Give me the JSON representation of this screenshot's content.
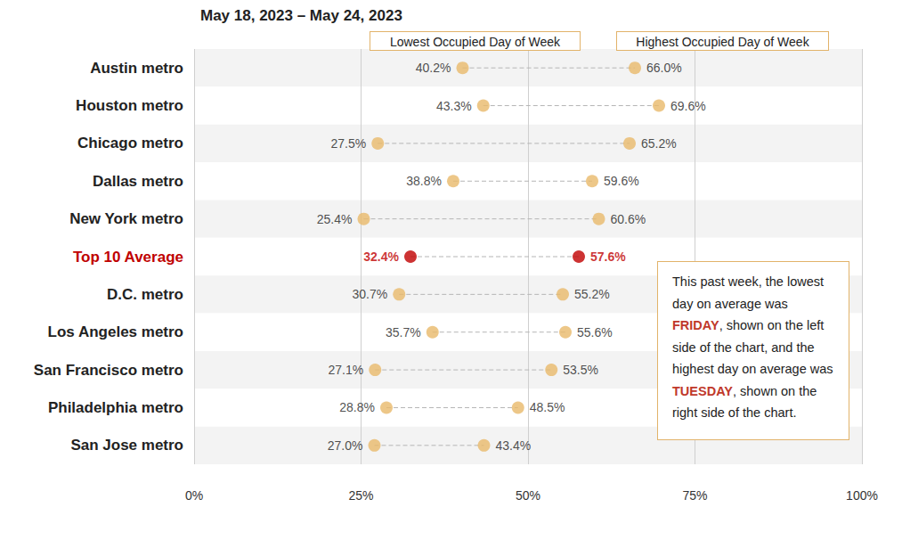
{
  "chart_data": {
    "type": "dumbbell",
    "title": "May 18, 2023 – May 24, 2023",
    "orientation": "horizontal",
    "categories": [
      "Austin metro",
      "Houston metro",
      "Chicago metro",
      "Dallas metro",
      "New York metro",
      "Top 10 Average",
      "D.C. metro",
      "Los Angeles metro",
      "San Francisco metro",
      "Philadelphia metro",
      "San Jose metro"
    ],
    "series": [
      {
        "name": "Lowest Occupied Day of Week",
        "color": "#e8b96a",
        "colors": [
          "#e8b96a",
          "#e8b96a",
          "#e8b96a",
          "#e8b96a",
          "#e8b96a",
          "#c00000",
          "#e8b96a",
          "#e8b96a",
          "#e8b96a",
          "#e8b96a",
          "#e8b96a"
        ],
        "values": [
          40.2,
          43.3,
          27.5,
          38.8,
          25.4,
          32.4,
          30.7,
          35.7,
          27.1,
          28.8,
          27.0
        ],
        "value_labels": [
          "40.2%",
          "43.3%",
          "27.5%",
          "38.8%",
          "25.4%",
          "32.4%",
          "30.7%",
          "35.7%",
          "27.1%",
          "28.8%",
          "27.0%"
        ]
      },
      {
        "name": "Highest Occupied Day of Week",
        "color": "#e8b96a",
        "colors": [
          "#e8b96a",
          "#e8b96a",
          "#e8b96a",
          "#e8b96a",
          "#e8b96a",
          "#c00000",
          "#e8b96a",
          "#e8b96a",
          "#e8b96a",
          "#e8b96a",
          "#e8b96a"
        ],
        "values": [
          66.0,
          69.6,
          65.2,
          59.6,
          60.6,
          57.6,
          55.2,
          55.6,
          53.5,
          48.5,
          43.4
        ],
        "value_labels": [
          "66.0%",
          "69.6%",
          "65.2%",
          "59.6%",
          "60.6%",
          "57.6%",
          "55.2%",
          "55.6%",
          "53.5%",
          "48.5%",
          "43.4%"
        ]
      }
    ],
    "xlim": [
      0,
      100
    ],
    "xticks": [
      {
        "value": 0,
        "label": "0%"
      },
      {
        "value": 25,
        "label": "25%"
      },
      {
        "value": 50,
        "label": "50%"
      },
      {
        "value": 75,
        "label": "75%"
      },
      {
        "value": 100,
        "label": "100%"
      }
    ],
    "grid": true,
    "data_labels": true,
    "annotation": [
      {
        "text": "This past week, the lowest day on average was "
      },
      {
        "text": "FRIDAY",
        "color": "#c0392b"
      },
      {
        "text": ", shown on the left side of the chart, and the highest day on average was "
      },
      {
        "text": "TUESDAY",
        "color": "#c0392b"
      },
      {
        "text": ", shown on the right side of the chart."
      }
    ]
  }
}
